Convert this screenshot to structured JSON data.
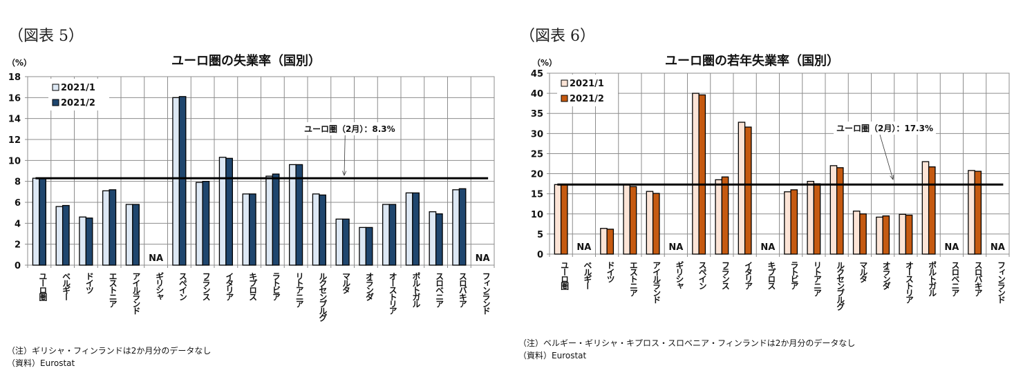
{
  "figures": [
    {
      "id": "fig5",
      "fig_label": "（図表 5）",
      "unit": "（%）",
      "notes": [
        "（注）ギリシャ・フィンランドは2か月分のデータなし",
        "（資料）Eurostat"
      ],
      "colors": {
        "s1_fill": "#dde8f4",
        "s2_fill": "#1f466e",
        "stroke": "#000000",
        "grid": "#8c8c8c"
      }
    },
    {
      "id": "fig6",
      "fig_label": "（図表 6）",
      "unit": "（%）",
      "notes": [
        "（注）ベルギー・ギリシャ・キプロス・スロベニア・フィンランドは2か月分のデータなし",
        "（資料）Eurostat"
      ],
      "colors": {
        "s1_fill": "#fce4d6",
        "s2_fill": "#c55a11",
        "stroke": "#000000",
        "grid": "#8c8c8c"
      }
    }
  ],
  "chart_data": [
    {
      "type": "bar",
      "title": "ユーロ圏の失業率（国別）",
      "xlabel": "",
      "ylabel": "（%）",
      "ylim": [
        0,
        18
      ],
      "yticks": [
        0,
        2,
        4,
        6,
        8,
        10,
        12,
        14,
        16,
        18
      ],
      "grid": true,
      "legend_position": "top-left",
      "categories": [
        "ユーロ圏",
        "ベルギー",
        "ドイツ",
        "エストニア",
        "アイルランド",
        "ギリシャ",
        "スペイン",
        "フランス",
        "イタリア",
        "キプロス",
        "ラトビア",
        "リトアニア",
        "ルクセンブルグ",
        "マルタ",
        "オランダ",
        "オーストリア",
        "ポルトガル",
        "スロベニア",
        "スロバキア",
        "フィンランド"
      ],
      "series": [
        {
          "name": "2021/1",
          "values": [
            8.3,
            5.6,
            4.6,
            7.1,
            5.8,
            null,
            16.0,
            7.9,
            10.3,
            6.8,
            8.5,
            9.6,
            6.8,
            4.4,
            3.6,
            5.8,
            6.9,
            5.1,
            7.2,
            null
          ]
        },
        {
          "name": "2021/2",
          "values": [
            8.3,
            5.7,
            4.5,
            7.2,
            5.8,
            null,
            16.1,
            8.0,
            10.2,
            6.8,
            8.7,
            9.6,
            6.7,
            4.4,
            3.6,
            5.8,
            6.9,
            4.9,
            7.3,
            null
          ]
        }
      ],
      "na_label": "NA",
      "reference_line": {
        "value": 8.3,
        "label": "ユーロ圏（2月）：8.3%"
      }
    },
    {
      "type": "bar",
      "title": "ユーロ圏の若年失業率（国別）",
      "xlabel": "",
      "ylabel": "（%）",
      "ylim": [
        0,
        45
      ],
      "yticks": [
        0,
        5,
        10,
        15,
        20,
        25,
        30,
        35,
        40,
        45
      ],
      "grid": true,
      "legend_position": "top-left",
      "categories": [
        "ユーロ圏",
        "ベルギー",
        "ドイツ",
        "エストニア",
        "アイルランド",
        "ギリシャ",
        "スペイン",
        "フランス",
        "イタリア",
        "キプロス",
        "ラトビア",
        "リトアニア",
        "ルクセンブルグ",
        "マルタ",
        "オランダ",
        "オーストリア",
        "ポルトガル",
        "スロベニア",
        "スロバキア",
        "フィンランド"
      ],
      "series": [
        {
          "name": "2021/1",
          "values": [
            17.3,
            null,
            6.4,
            17.2,
            15.6,
            null,
            40.0,
            18.5,
            32.8,
            null,
            15.5,
            18.1,
            22.0,
            10.7,
            9.2,
            9.9,
            23.0,
            null,
            20.8,
            null
          ]
        },
        {
          "name": "2021/2",
          "values": [
            17.3,
            null,
            6.2,
            16.8,
            15.1,
            null,
            39.6,
            19.2,
            31.6,
            null,
            16.0,
            17.5,
            21.5,
            10.0,
            9.5,
            9.7,
            21.7,
            null,
            20.6,
            null
          ]
        }
      ],
      "na_label": "NA",
      "reference_line": {
        "value": 17.3,
        "label": "ユーロ圏（2月）：17.3%"
      }
    }
  ]
}
